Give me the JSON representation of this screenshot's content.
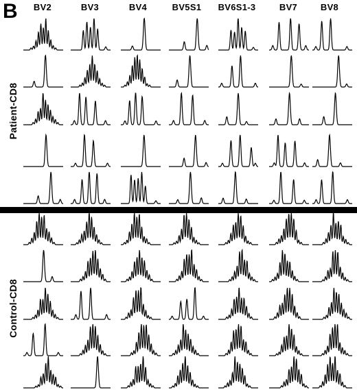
{
  "panel_letter": "B",
  "columns": [
    "BV2",
    "BV3",
    "BV4",
    "BV5S1",
    "BV6S1-3",
    "BV7",
    "BV8"
  ],
  "groups": [
    {
      "label": "Patient-CD8",
      "rows": 5
    },
    {
      "label": "Control-CD8",
      "rows": 5
    }
  ],
  "trace_profiles": [
    [
      "polyclonal",
      "multi-peak",
      "single-peak",
      "single-peak",
      "multi-peak",
      "oligoclonal",
      "oligoclonal"
    ],
    [
      "single-peak",
      "polyclonal",
      "polyclonal",
      "single-peak",
      "oligoclonal",
      "single-peak",
      "single-peak"
    ],
    [
      "polyclonal",
      "oligoclonal",
      "oligoclonal",
      "oligoclonal",
      "single-peak",
      "single-peak",
      "single-peak"
    ],
    [
      "single-peak",
      "oligoclonal",
      "single-peak",
      "single-peak",
      "oligoclonal",
      "oligoclonal",
      "single-peak"
    ],
    [
      "single-peak",
      "oligoclonal",
      "multi-peak",
      "single-peak",
      "single-peak",
      "oligoclonal",
      "oligoclonal"
    ],
    [
      "polyclonal",
      "polyclonal",
      "polyclonal",
      "polyclonal",
      "polyclonal",
      "polyclonal",
      "polyclonal"
    ],
    [
      "single-peak",
      "polyclonal",
      "polyclonal",
      "polyclonal",
      "polyclonal",
      "polyclonal",
      "polyclonal"
    ],
    [
      "polyclonal",
      "oligoclonal",
      "polyclonal",
      "oligoclonal",
      "polyclonal",
      "polyclonal",
      "polyclonal"
    ],
    [
      "oligoclonal",
      "polyclonal",
      "polyclonal",
      "polyclonal",
      "polyclonal",
      "polyclonal",
      "polyclonal"
    ],
    [
      "polyclonal",
      "single-peak",
      "polyclonal",
      "polyclonal",
      "polyclonal",
      "polyclonal",
      "polyclonal"
    ]
  ]
}
